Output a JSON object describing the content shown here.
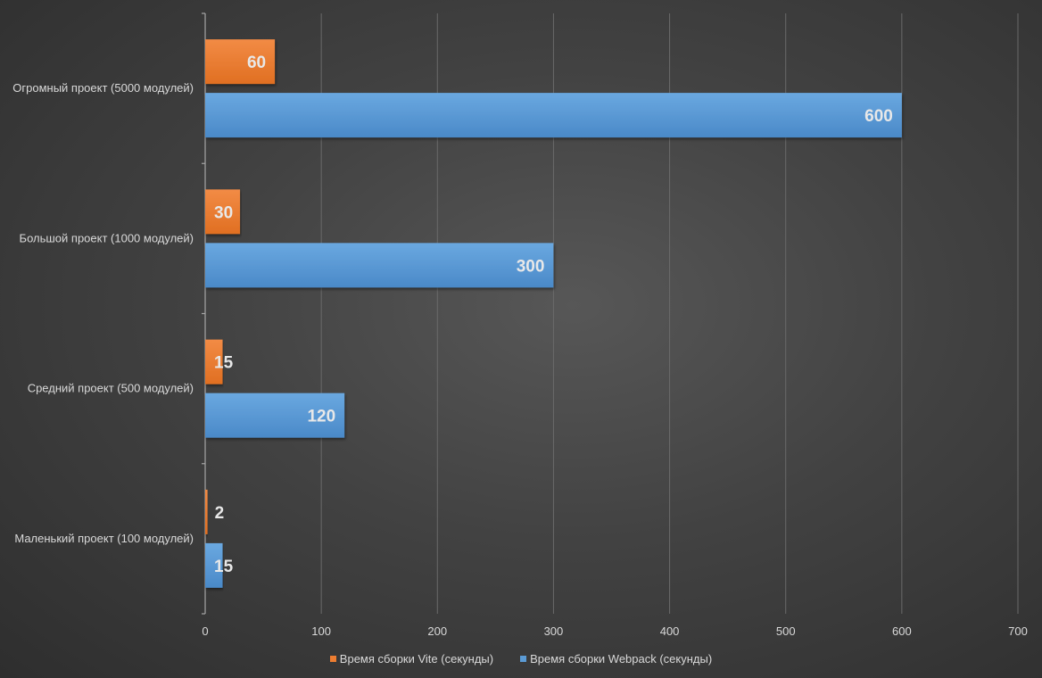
{
  "chart_data": {
    "type": "bar",
    "orientation": "horizontal",
    "categories": [
      "Огромный проект (5000 модулей)",
      "Большой проект (1000 модулей)",
      "Средний проект (500 модулей)",
      "Маленький проект (100 модулей)"
    ],
    "series": [
      {
        "name": "Время сборки Vite (секунды)",
        "color": "#ed7d31",
        "values": [
          60,
          30,
          15,
          2
        ]
      },
      {
        "name": "Время сборки Webpack (секунды)",
        "color": "#5b9bd5",
        "values": [
          600,
          300,
          120,
          15
        ]
      }
    ],
    "xlim": [
      0,
      700
    ],
    "xticks": [
      0,
      100,
      200,
      300,
      400,
      500,
      600,
      700
    ],
    "grid": true,
    "legend_position": "bottom",
    "title": "",
    "xlabel": "",
    "ylabel": ""
  }
}
